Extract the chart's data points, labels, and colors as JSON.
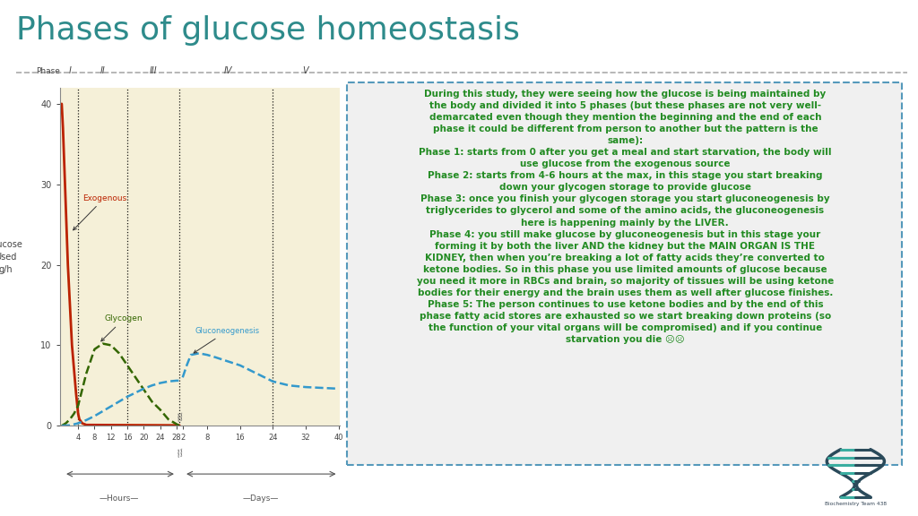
{
  "title": "Phases of glucose homeostasis",
  "title_color": "#2e8b8b",
  "title_fontsize": 26,
  "bg_color": "#ffffff",
  "chart_bg_color": "#f5f0d8",
  "ylabel": "Glucose\nUsed\ng/h",
  "ylabel_fontsize": 7,
  "ylim": [
    0,
    42
  ],
  "yticks": [
    0,
    10,
    20,
    30,
    40
  ],
  "exogenous_color": "#bb2200",
  "glycogen_color": "#336600",
  "gluconeogenesis_color": "#3399cc",
  "text_box_color": "#228B22",
  "text_box_bg": "#f0f0f0",
  "text_box_border": "#5599bb",
  "annotation_text": "During this study, they were seeing how the glucose is being maintained by\nthe body and divided it into 5 phases (but these phases are not very well-\ndemarcated even though they mention the beginning and the end of each\nphase it could be different from person to another but the pattern is the\nsame):\nPhase 1: starts from 0 after you get a meal and start starvation, the body will\nuse glucose from the exogenous source\nPhase 2: starts from 4-6 hours at the max, in this stage you start breaking\ndown your glycogen storage to provide glucose\nPhase 3: once you finish your glycogen storage you start gluconeogenesis by\ntriglycerides to glycerol and some of the amino acids, the gluconeogenesis\nhere is happening mainly by the LIVER.\nPhase 4: you still make glucose by gluconeogenesis but in this stage your\nforming it by both the liver AND the kidney but the MAIN ORGAN IS THE\nKIDNEY, then when you’re breaking a lot of fatty acids they’re converted to\nketone bodies. So in this phase you use limited amounts of glucose because\nyou need it more in RBCs and brain, so majority of tissues will be using ketone\nbodies for their energy and the brain uses them as well after glucose finishes.\nPhase 5: The person continues to use ketone bodies and by the end of this\nphase fatty acid stores are exhausted so we start breaking down proteins (so\nthe function of your vital organs will be compromised) and if you continue\nstarvation you die ☹☹",
  "logo_text": "Biochemistry Team 438"
}
